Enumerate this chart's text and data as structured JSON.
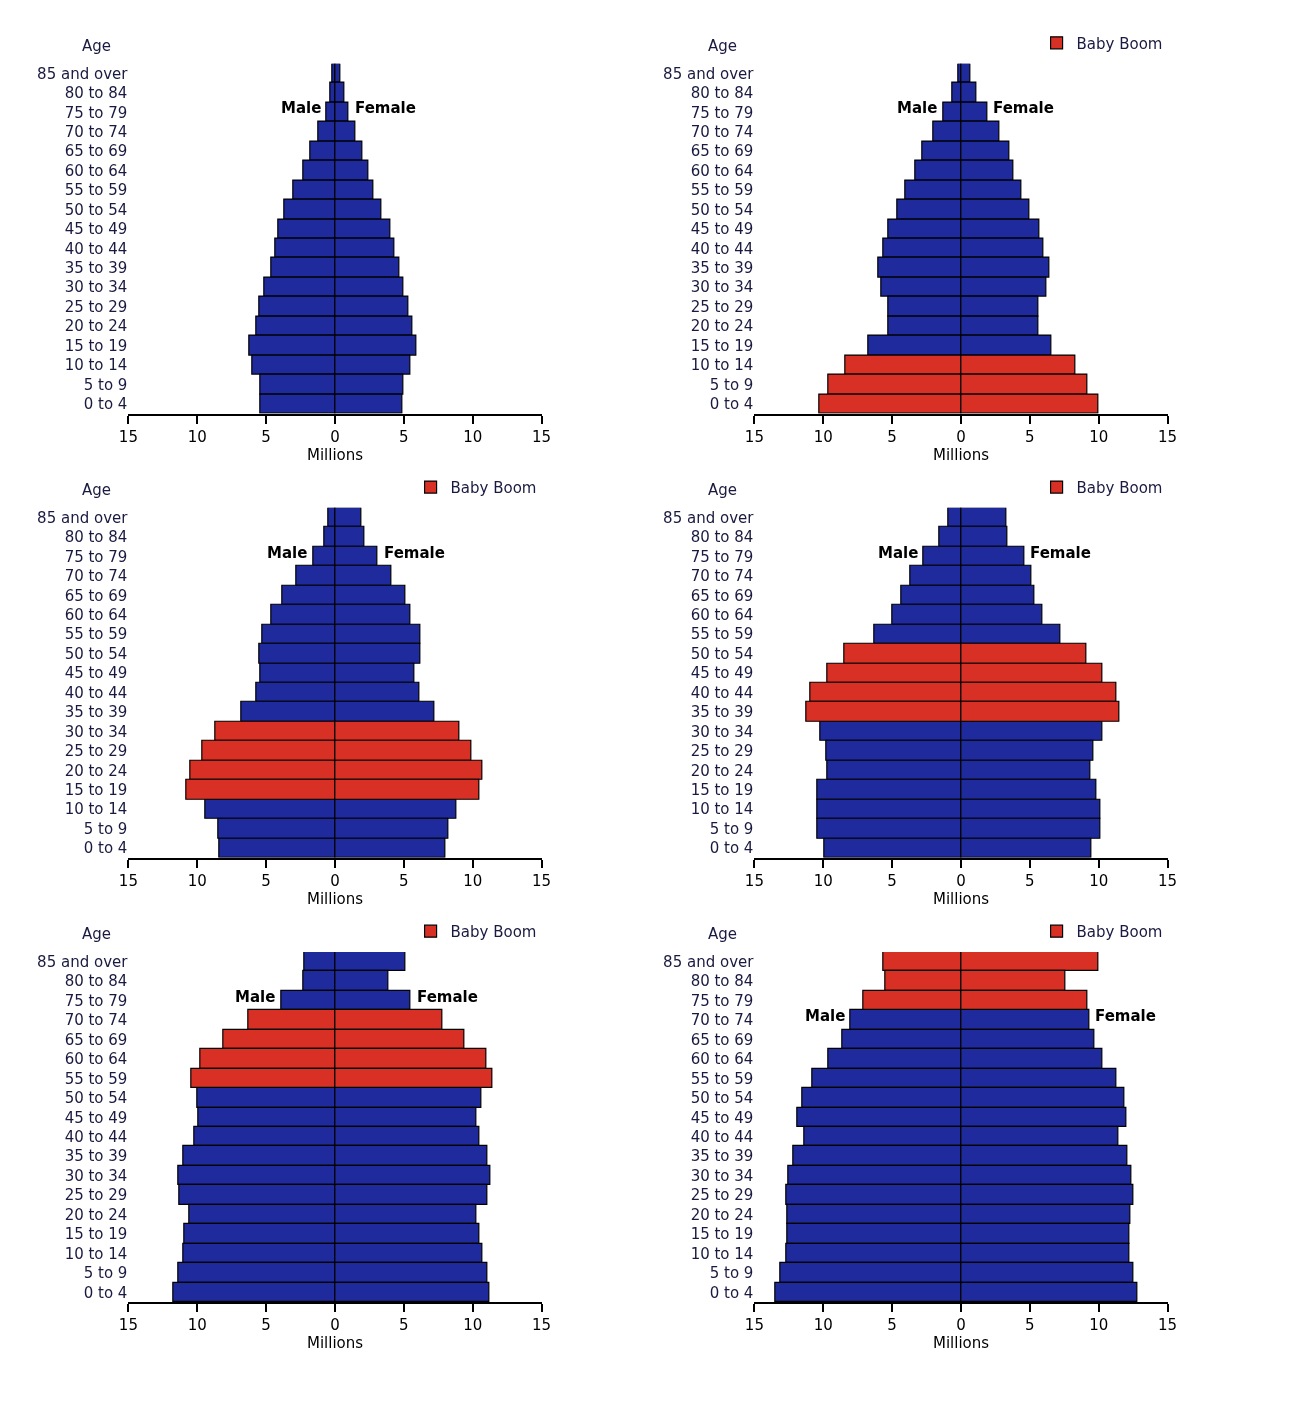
{
  "chart_data": [
    {
      "type": "bar",
      "orientation": "horizontal",
      "stacked": true,
      "ylabel": "Age",
      "xlabel": "Millions",
      "xlim": [
        -15,
        15
      ],
      "xticks": [
        {
          "value": -15,
          "label": "15"
        },
        {
          "value": -10,
          "label": "10"
        },
        {
          "value": -5,
          "label": "5"
        },
        0,
        5,
        10,
        15
      ],
      "categories": [
        "85 and over",
        "80 to 84",
        "75 to 79",
        "70 to 74",
        "65 to 69",
        "60 to 64",
        "55 to 59",
        "50 to 54",
        "45 to 49",
        "40 to 44",
        "35 to 39",
        "30 to 34",
        "25 to 29",
        "20 to 24",
        "15 to 19",
        "10 to 14",
        "5 to 9",
        "0 to 4"
      ],
      "series": [
        {
          "name": "Male",
          "color": "#1f2a9c",
          "values": [
            -0.2,
            -0.35,
            -0.6,
            -1.2,
            -1.8,
            -2.3,
            -3.0,
            -3.7,
            -4.1,
            -4.3,
            -4.6,
            -5.1,
            -5.5,
            -5.7,
            -6.2,
            -6.0,
            -5.4,
            -5.4
          ]
        },
        {
          "name": "Female",
          "color": "#1f2a9c",
          "values": [
            0.4,
            0.7,
            1.0,
            1.5,
            2.0,
            2.4,
            2.8,
            3.4,
            4.0,
            4.3,
            4.7,
            5.0,
            5.3,
            5.6,
            5.9,
            5.5,
            5.0,
            4.9
          ]
        }
      ]
    },
    {
      "type": "bar",
      "orientation": "horizontal",
      "stacked": true,
      "ylabel": "Age",
      "xlabel": "Millions",
      "xlim": [
        -15,
        15
      ],
      "xticks": [
        {
          "value": -15,
          "label": "15"
        },
        {
          "value": -10,
          "label": "10"
        },
        {
          "value": -5,
          "label": "5"
        },
        0,
        5,
        10,
        15
      ],
      "legend": "top right",
      "categories": [
        "85 and over",
        "80 to 84",
        "75 to 79",
        "70 to 74",
        "65 to 69",
        "60 to 64",
        "55 to 59",
        "50 to 54",
        "45 to 49",
        "40 to 44",
        "35 to 39",
        "30 to 34",
        "25 to 29",
        "20 to 24",
        "15 to 19",
        "10 to 14",
        "5 to 9",
        "0 to 4"
      ],
      "series": [
        {
          "name": "Male",
          "color": "#1f2a9c",
          "values": [
            -0.2,
            -0.6,
            -1.3,
            -2.0,
            -2.8,
            -3.3,
            -4.0,
            -4.6,
            -5.3,
            -5.6,
            -6.0,
            -5.8,
            -5.3,
            -5.3,
            -6.7,
            null,
            null,
            null
          ]
        },
        {
          "name": "Female",
          "color": "#1f2a9c",
          "values": [
            0.7,
            1.1,
            1.9,
            2.8,
            3.5,
            3.8,
            4.4,
            5.0,
            5.7,
            6.0,
            6.4,
            6.2,
            5.6,
            5.6,
            6.6,
            null,
            null,
            null
          ]
        },
        {
          "color": "#d93025",
          "values": [
            null,
            null,
            null,
            null,
            null,
            null,
            null,
            null,
            null,
            null,
            null,
            null,
            null,
            null,
            null,
            -8.4,
            -9.6,
            -10.3
          ]
        },
        {
          "name": "Baby Boom",
          "color": "#d93025",
          "values": [
            null,
            null,
            null,
            null,
            null,
            null,
            null,
            null,
            null,
            null,
            null,
            null,
            null,
            null,
            null,
            8.3,
            9.2,
            10.0
          ]
        }
      ]
    },
    {
      "type": "bar",
      "orientation": "horizontal",
      "stacked": true,
      "ylabel": "Age",
      "xlabel": "Millions",
      "xlim": [
        -15,
        15
      ],
      "xticks": [
        {
          "value": -15,
          "label": "15"
        },
        {
          "value": -10,
          "label": "10"
        },
        {
          "value": -5,
          "label": "5"
        },
        0,
        5,
        10,
        15
      ],
      "legend": "top right",
      "categories": [
        "85 and over",
        "80 to 84",
        "75 to 79",
        "70 to 74",
        "65 to 69",
        "60 to 64",
        "55 to 59",
        "50 to 54",
        "45 to 49",
        "40 to 44",
        "35 to 39",
        "30 to 34",
        "25 to 29",
        "20 to 24",
        "15 to 19",
        "10 to 14",
        "5 to 9",
        "0 to 4"
      ],
      "series": [
        {
          "name": "Male",
          "color": "#1f2a9c",
          "values": [
            -0.5,
            -0.8,
            -1.6,
            -2.8,
            -3.8,
            -4.6,
            -5.3,
            -5.5,
            -5.4,
            -5.7,
            -6.8,
            null,
            null,
            null,
            null,
            -9.4,
            -8.5,
            -8.4
          ]
        },
        {
          "name": "Female",
          "color": "#1f2a9c",
          "values": [
            1.9,
            2.1,
            3.1,
            4.1,
            5.1,
            5.5,
            6.2,
            6.2,
            5.8,
            6.1,
            7.2,
            null,
            null,
            null,
            null,
            8.8,
            8.2,
            8.0
          ]
        },
        {
          "color": "#d93025",
          "values": [
            null,
            null,
            null,
            null,
            null,
            null,
            null,
            null,
            null,
            null,
            null,
            -8.7,
            -9.6,
            -10.5,
            -10.8,
            null,
            null,
            null
          ]
        },
        {
          "name": "Baby Boom",
          "color": "#d93025",
          "values": [
            null,
            null,
            null,
            null,
            null,
            null,
            null,
            null,
            null,
            null,
            null,
            9.0,
            9.9,
            10.7,
            10.5,
            null,
            null,
            null
          ]
        }
      ]
    },
    {
      "type": "bar",
      "orientation": "horizontal",
      "stacked": true,
      "ylabel": "Age",
      "xlabel": "Millions",
      "xlim": [
        -15,
        15
      ],
      "xticks": [
        {
          "value": -15,
          "label": "15"
        },
        {
          "value": -10,
          "label": "10"
        },
        {
          "value": -5,
          "label": "5"
        },
        0,
        5,
        10,
        15
      ],
      "legend": "top right",
      "categories": [
        "85 and over",
        "80 to 84",
        "75 to 79",
        "70 to 74",
        "65 to 69",
        "60 to 64",
        "55 to 59",
        "50 to 54",
        "45 to 49",
        "40 to 44",
        "35 to 39",
        "30 to 34",
        "25 to 29",
        "20 to 24",
        "15 to 19",
        "10 to 14",
        "5 to 9",
        "0 to 4"
      ],
      "series": [
        {
          "name": "Male",
          "color": "#1f2a9c",
          "values": [
            -0.9,
            -1.6,
            -2.7,
            -3.7,
            -4.3,
            -5.0,
            -6.3,
            null,
            null,
            null,
            null,
            -10.2,
            -9.8,
            -9.7,
            -10.4,
            -10.4,
            -10.4,
            -9.9
          ]
        },
        {
          "name": "Female",
          "color": "#1f2a9c",
          "values": [
            3.3,
            3.4,
            4.6,
            5.1,
            5.3,
            5.9,
            7.2,
            null,
            null,
            null,
            null,
            10.3,
            9.6,
            9.4,
            9.8,
            10.1,
            10.1,
            9.5
          ]
        },
        {
          "color": "#d93025",
          "values": [
            null,
            null,
            null,
            null,
            null,
            null,
            null,
            -8.5,
            -9.7,
            -10.9,
            -11.2,
            null,
            null,
            null,
            null,
            null,
            null,
            null
          ]
        },
        {
          "name": "Baby Boom",
          "color": "#d93025",
          "values": [
            null,
            null,
            null,
            null,
            null,
            null,
            null,
            9.1,
            10.3,
            11.3,
            11.5,
            null,
            null,
            null,
            null,
            null,
            null,
            null
          ]
        }
      ]
    },
    {
      "type": "bar",
      "orientation": "horizontal",
      "stacked": true,
      "ylabel": "Age",
      "xlabel": "Millions",
      "xlim": [
        -15,
        15
      ],
      "xticks": [
        {
          "value": -15,
          "label": "15"
        },
        {
          "value": -10,
          "label": "10"
        },
        {
          "value": -5,
          "label": "5"
        },
        0,
        5,
        10,
        15
      ],
      "legend": "top right",
      "categories": [
        "85 and over",
        "80 to 84",
        "75 to 79",
        "70 to 74",
        "65 to 69",
        "60 to 64",
        "55 to 59",
        "50 to 54",
        "45 to 49",
        "40 to 44",
        "35 to 39",
        "30 to 34",
        "25 to 29",
        "20 to 24",
        "15 to 19",
        "10 to 14",
        "5 to 9",
        "0 to 4"
      ],
      "series": [
        {
          "name": "Male",
          "color": "#1f2a9c",
          "values": [
            -2.2,
            -2.3,
            -3.9,
            null,
            null,
            null,
            null,
            -10.0,
            -9.9,
            -10.2,
            -11.0,
            -11.4,
            -11.3,
            -10.6,
            -10.9,
            -11.0,
            -11.4,
            -11.7
          ]
        },
        {
          "name": "Female",
          "color": "#1f2a9c",
          "values": [
            5.1,
            3.9,
            5.5,
            null,
            null,
            null,
            null,
            10.6,
            10.3,
            10.5,
            11.1,
            11.3,
            11.1,
            10.3,
            10.5,
            10.7,
            11.1,
            11.2
          ]
        },
        {
          "color": "#d93025",
          "values": [
            null,
            null,
            null,
            -6.3,
            -8.1,
            -9.8,
            -10.4,
            null,
            null,
            null,
            null,
            null,
            null,
            null,
            null,
            null,
            null,
            null
          ]
        },
        {
          "name": "Baby Boom",
          "color": "#d93025",
          "values": [
            null,
            null,
            null,
            7.8,
            9.4,
            11.0,
            11.4,
            null,
            null,
            null,
            null,
            null,
            null,
            null,
            null,
            null,
            null,
            null
          ]
        }
      ]
    },
    {
      "type": "bar",
      "orientation": "horizontal",
      "stacked": true,
      "ylabel": "Age",
      "xlabel": "Millions",
      "xlim": [
        -15,
        15
      ],
      "xticks": [
        {
          "value": -15,
          "label": "15"
        },
        {
          "value": -10,
          "label": "10"
        },
        {
          "value": -5,
          "label": "5"
        },
        0,
        5,
        10,
        15
      ],
      "legend": "top right",
      "categories": [
        "85 and over",
        "80 to 84",
        "75 to 79",
        "70 to 74",
        "65 to 69",
        "60 to 64",
        "55 to 59",
        "50 to 54",
        "45 to 49",
        "40 to 44",
        "35 to 39",
        "30 to 34",
        "25 to 29",
        "20 to 24",
        "15 to 19",
        "10 to 14",
        "5 to 9",
        "0 to 4"
      ],
      "series": [
        {
          "name": "Male",
          "color": "#1f2a9c",
          "values": [
            null,
            null,
            null,
            -8.0,
            -8.6,
            -9.6,
            -10.8,
            -11.5,
            -11.9,
            -11.4,
            -12.2,
            -12.5,
            -12.7,
            -12.6,
            -12.6,
            -12.7,
            -13.1,
            -13.5
          ]
        },
        {
          "name": "Female",
          "color": "#1f2a9c",
          "values": [
            null,
            null,
            null,
            9.3,
            9.7,
            10.3,
            11.3,
            11.9,
            12.0,
            11.4,
            12.1,
            12.4,
            12.5,
            12.3,
            12.2,
            12.2,
            12.5,
            12.8
          ]
        },
        {
          "color": "#d93025",
          "values": [
            -5.6,
            -5.5,
            -7.1,
            null,
            null,
            null,
            null,
            null,
            null,
            null,
            null,
            null,
            null,
            null,
            null,
            null,
            null,
            null
          ]
        },
        {
          "name": "Baby Boom",
          "color": "#d93025",
          "values": [
            10.0,
            7.6,
            9.2,
            null,
            null,
            null,
            null,
            null,
            null,
            null,
            null,
            null,
            null,
            null,
            null,
            null,
            null,
            null
          ]
        }
      ]
    }
  ]
}
